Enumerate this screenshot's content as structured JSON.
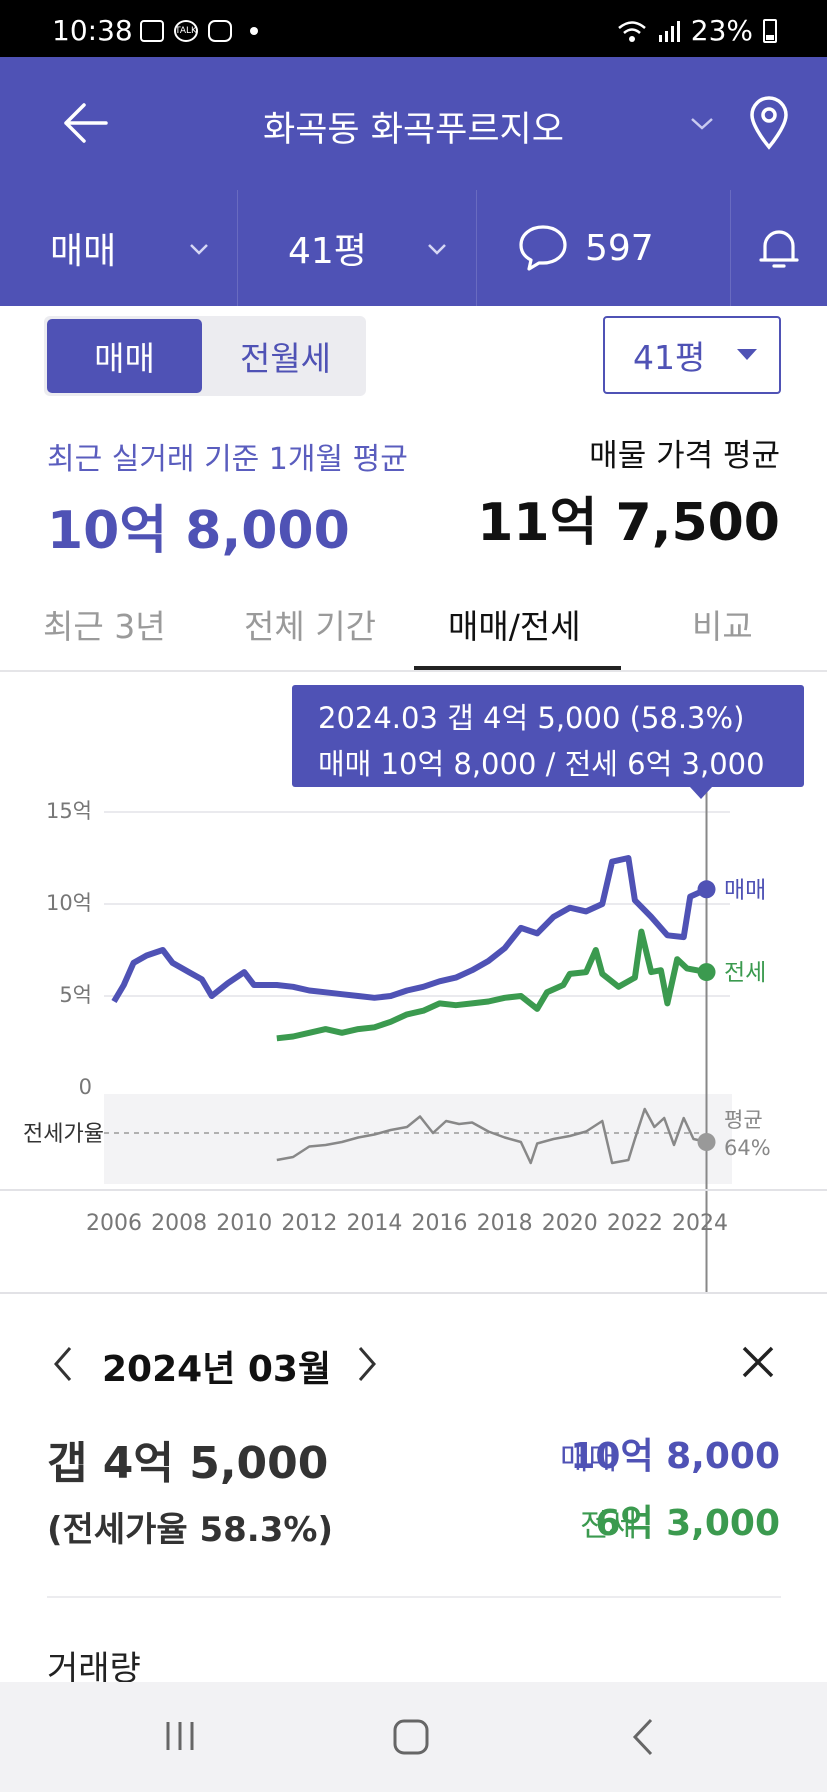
{
  "status_bar": {
    "time": "10:38",
    "battery": "23%",
    "talk_icon_text": "TALK"
  },
  "header": {
    "title": "화곡동 화곡푸르지오"
  },
  "filter_bar": {
    "trade_type": "매매",
    "size": "41평",
    "comment_count": "597"
  },
  "toggle": {
    "sale": "매매",
    "rent": "전월세"
  },
  "size_select": {
    "value": "41평"
  },
  "summary": {
    "recent_label": "최근 실거래 기준 1개월 평균",
    "recent_value": "10억 8,000",
    "listing_label": "매물 가격 평균",
    "listing_value": "11억 7,500"
  },
  "tabs": [
    {
      "label": "최근 3년"
    },
    {
      "label": "전체 기간"
    },
    {
      "label": "매매/전세"
    },
    {
      "label": "비교"
    }
  ],
  "tooltip": {
    "line1": "2024.03  갭 4억 5,000 (58.3%)",
    "line2": "매매 10억 8,000 / 전세 6억 3,000"
  },
  "chart_data": {
    "type": "line",
    "x_ticks": [
      "2006",
      "2008",
      "2010",
      "2012",
      "2014",
      "2016",
      "2018",
      "2020",
      "2022",
      "2024"
    ],
    "y_ticks": [
      "15억",
      "10억",
      "5억",
      "0"
    ],
    "ylim": [
      0,
      15
    ],
    "ylabel_unit": "억",
    "series": [
      {
        "name": "매매",
        "color": "#4f52b5",
        "points": [
          [
            2006.0,
            4.7
          ],
          [
            2006.3,
            5.6
          ],
          [
            2006.6,
            6.8
          ],
          [
            2007.0,
            7.2
          ],
          [
            2007.5,
            7.5
          ],
          [
            2007.8,
            6.8
          ],
          [
            2008.3,
            6.3
          ],
          [
            2008.7,
            5.9
          ],
          [
            2009.0,
            5.0
          ],
          [
            2009.5,
            5.7
          ],
          [
            2010.0,
            6.3
          ],
          [
            2010.3,
            5.6
          ],
          [
            2011.0,
            5.6
          ],
          [
            2011.5,
            5.5
          ],
          [
            2012.0,
            5.3
          ],
          [
            2012.5,
            5.2
          ],
          [
            2013.0,
            5.1
          ],
          [
            2013.5,
            5.0
          ],
          [
            2014.0,
            4.9
          ],
          [
            2014.5,
            5.0
          ],
          [
            2015.0,
            5.3
          ],
          [
            2015.5,
            5.5
          ],
          [
            2016.0,
            5.8
          ],
          [
            2016.5,
            6.0
          ],
          [
            2017.0,
            6.4
          ],
          [
            2017.5,
            6.9
          ],
          [
            2018.0,
            7.6
          ],
          [
            2018.5,
            8.7
          ],
          [
            2019.0,
            8.4
          ],
          [
            2019.5,
            9.3
          ],
          [
            2020.0,
            9.8
          ],
          [
            2020.5,
            9.6
          ],
          [
            2021.0,
            10.0
          ],
          [
            2021.3,
            12.3
          ],
          [
            2021.8,
            12.5
          ],
          [
            2022.0,
            10.2
          ],
          [
            2022.5,
            9.3
          ],
          [
            2023.0,
            8.3
          ],
          [
            2023.5,
            8.2
          ],
          [
            2023.7,
            10.4
          ],
          [
            2024.2,
            10.8
          ]
        ]
      },
      {
        "name": "전세",
        "color": "#3b9a4f",
        "points": [
          [
            2011.0,
            2.7
          ],
          [
            2011.5,
            2.8
          ],
          [
            2012.0,
            3.0
          ],
          [
            2012.5,
            3.2
          ],
          [
            2013.0,
            3.0
          ],
          [
            2013.5,
            3.2
          ],
          [
            2014.0,
            3.3
          ],
          [
            2014.5,
            3.6
          ],
          [
            2015.0,
            4.0
          ],
          [
            2015.5,
            4.2
          ],
          [
            2016.0,
            4.6
          ],
          [
            2016.5,
            4.5
          ],
          [
            2017.0,
            4.6
          ],
          [
            2017.5,
            4.7
          ],
          [
            2018.0,
            4.9
          ],
          [
            2018.5,
            5.0
          ],
          [
            2019.0,
            4.3
          ],
          [
            2019.3,
            5.2
          ],
          [
            2019.8,
            5.6
          ],
          [
            2020.0,
            6.2
          ],
          [
            2020.5,
            6.3
          ],
          [
            2020.8,
            7.5
          ],
          [
            2021.0,
            6.2
          ],
          [
            2021.5,
            5.5
          ],
          [
            2022.0,
            6.0
          ],
          [
            2022.2,
            8.5
          ],
          [
            2022.5,
            6.3
          ],
          [
            2022.8,
            6.4
          ],
          [
            2023.0,
            4.6
          ],
          [
            2023.3,
            7.0
          ],
          [
            2023.6,
            6.5
          ],
          [
            2024.2,
            6.3
          ]
        ]
      },
      {
        "name": "전세가율",
        "color": "#888888",
        "points": [
          [
            2011.0,
            46
          ],
          [
            2011.5,
            48
          ],
          [
            2012.0,
            55
          ],
          [
            2012.5,
            56
          ],
          [
            2013.0,
            58
          ],
          [
            2013.5,
            61
          ],
          [
            2014.0,
            63
          ],
          [
            2014.5,
            66
          ],
          [
            2015.0,
            68
          ],
          [
            2015.4,
            75
          ],
          [
            2015.8,
            64
          ],
          [
            2016.2,
            72
          ],
          [
            2016.6,
            70
          ],
          [
            2017.0,
            71
          ],
          [
            2017.5,
            65
          ],
          [
            2018.0,
            61
          ],
          [
            2018.5,
            58
          ],
          [
            2018.8,
            44
          ],
          [
            2019.0,
            57
          ],
          [
            2019.5,
            60
          ],
          [
            2020.0,
            62
          ],
          [
            2020.5,
            65
          ],
          [
            2021.0,
            72
          ],
          [
            2021.3,
            44
          ],
          [
            2021.8,
            46
          ],
          [
            2022.0,
            60
          ],
          [
            2022.3,
            80
          ],
          [
            2022.6,
            68
          ],
          [
            2022.9,
            74
          ],
          [
            2023.2,
            56
          ],
          [
            2023.5,
            74
          ],
          [
            2023.8,
            60
          ],
          [
            2024.2,
            58
          ]
        ]
      }
    ],
    "series_labels": {
      "sale": "매매",
      "jeonse": "전세"
    },
    "ratio_label": "전세가율",
    "ratio_avg_label": "평균",
    "ratio_avg_value": "64%",
    "selected_x": 2024.2
  },
  "detail": {
    "month": "2024년 03월",
    "gap": "갭 4억 5,000",
    "ratio": "(전세가율 58.3%)",
    "sale_label": "매매",
    "sale_value": "10억 8,000",
    "jeonse_label": "전세",
    "jeonse_value": "6억 3,000",
    "volume_label": "거래량"
  }
}
